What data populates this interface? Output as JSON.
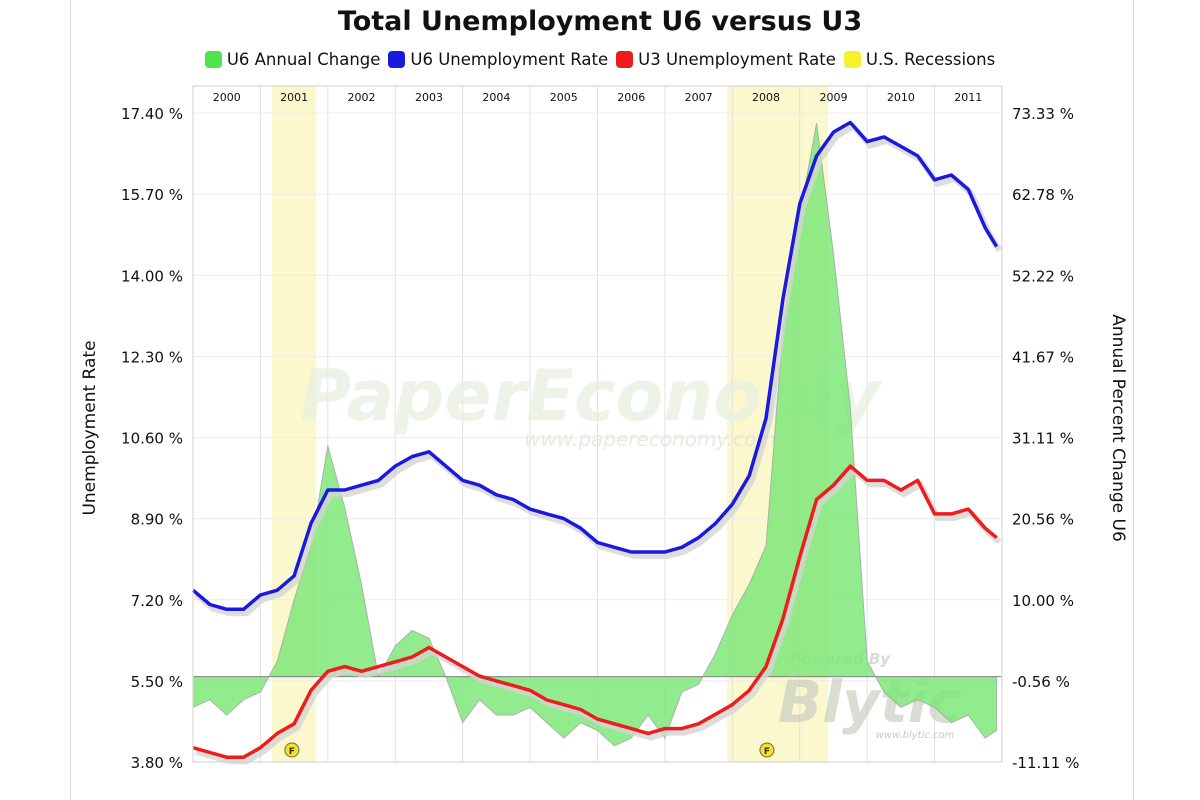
{
  "chart_data": {
    "type": "line",
    "title": "Total Unemployment U6 versus U3",
    "ylabel": "Unemployment Rate",
    "y2label": "Annual Percent Change U6",
    "ylim": [
      3.8,
      17.4
    ],
    "y2lim": [
      -11.11,
      73.33
    ],
    "yticks": [
      "3.80 %",
      "5.50 %",
      "7.20 %",
      "8.90 %",
      "10.60 %",
      "12.30 %",
      "14.00 %",
      "15.70 %",
      "17.40 %"
    ],
    "y2ticks": [
      "-11.11 %",
      "-0.56 %",
      "10.00 %",
      "20.56 %",
      "31.11 %",
      "41.67 %",
      "52.22 %",
      "62.78 %",
      "73.33 %"
    ],
    "years": [
      "2000",
      "2001",
      "2002",
      "2003",
      "2004",
      "2005",
      "2006",
      "2007",
      "2008",
      "2009",
      "2010",
      "2011"
    ],
    "grid": true,
    "legend_position": "top",
    "recessions": [
      {
        "start": 2001.17,
        "end": 2001.83
      },
      {
        "start": 2007.92,
        "end": 2009.42
      }
    ],
    "series": [
      {
        "name": "U6 Annual Change",
        "axis": "right",
        "type": "area",
        "color": "#7fe87a",
        "points": [
          [
            2000.0,
            -4
          ],
          [
            2000.25,
            -3
          ],
          [
            2000.5,
            -5
          ],
          [
            2000.75,
            -3
          ],
          [
            2001.0,
            -2
          ],
          [
            2001.25,
            2
          ],
          [
            2001.5,
            10
          ],
          [
            2001.75,
            17
          ],
          [
            2002.0,
            30
          ],
          [
            2002.25,
            22
          ],
          [
            2002.5,
            12
          ],
          [
            2002.75,
            0
          ],
          [
            2003.0,
            4
          ],
          [
            2003.25,
            6
          ],
          [
            2003.5,
            5
          ],
          [
            2003.75,
            0
          ],
          [
            2004.0,
            -6
          ],
          [
            2004.25,
            -3
          ],
          [
            2004.5,
            -5
          ],
          [
            2004.75,
            -5
          ],
          [
            2005.0,
            -4
          ],
          [
            2005.25,
            -6
          ],
          [
            2005.5,
            -8
          ],
          [
            2005.75,
            -6
          ],
          [
            2006.0,
            -7
          ],
          [
            2006.25,
            -9
          ],
          [
            2006.5,
            -8
          ],
          [
            2006.75,
            -5
          ],
          [
            2007.0,
            -8
          ],
          [
            2007.25,
            -2
          ],
          [
            2007.5,
            -1
          ],
          [
            2007.75,
            3
          ],
          [
            2008.0,
            8
          ],
          [
            2008.25,
            12
          ],
          [
            2008.5,
            17
          ],
          [
            2008.75,
            45
          ],
          [
            2009.0,
            60
          ],
          [
            2009.25,
            72
          ],
          [
            2009.5,
            55
          ],
          [
            2009.75,
            35
          ],
          [
            2010.0,
            2
          ],
          [
            2010.25,
            -2
          ],
          [
            2010.5,
            -4
          ],
          [
            2010.75,
            -3
          ],
          [
            2011.0,
            -4
          ],
          [
            2011.25,
            -6
          ],
          [
            2011.5,
            -5
          ],
          [
            2011.75,
            -8
          ],
          [
            2011.92,
            -7
          ]
        ]
      },
      {
        "name": "U6 Unemployment Rate",
        "axis": "left",
        "type": "line",
        "color": "#1a1adf",
        "points": [
          [
            2000.0,
            7.4
          ],
          [
            2000.25,
            7.1
          ],
          [
            2000.5,
            7.0
          ],
          [
            2000.75,
            7.0
          ],
          [
            2001.0,
            7.3
          ],
          [
            2001.25,
            7.4
          ],
          [
            2001.5,
            7.7
          ],
          [
            2001.75,
            8.8
          ],
          [
            2002.0,
            9.5
          ],
          [
            2002.25,
            9.5
          ],
          [
            2002.5,
            9.6
          ],
          [
            2002.75,
            9.7
          ],
          [
            2003.0,
            10.0
          ],
          [
            2003.25,
            10.2
          ],
          [
            2003.5,
            10.3
          ],
          [
            2003.75,
            10.0
          ],
          [
            2004.0,
            9.7
          ],
          [
            2004.25,
            9.6
          ],
          [
            2004.5,
            9.4
          ],
          [
            2004.75,
            9.3
          ],
          [
            2005.0,
            9.1
          ],
          [
            2005.25,
            9.0
          ],
          [
            2005.5,
            8.9
          ],
          [
            2005.75,
            8.7
          ],
          [
            2006.0,
            8.4
          ],
          [
            2006.25,
            8.3
          ],
          [
            2006.5,
            8.2
          ],
          [
            2006.75,
            8.2
          ],
          [
            2007.0,
            8.2
          ],
          [
            2007.25,
            8.3
          ],
          [
            2007.5,
            8.5
          ],
          [
            2007.75,
            8.8
          ],
          [
            2008.0,
            9.2
          ],
          [
            2008.25,
            9.8
          ],
          [
            2008.5,
            11.0
          ],
          [
            2008.75,
            13.5
          ],
          [
            2009.0,
            15.5
          ],
          [
            2009.25,
            16.5
          ],
          [
            2009.5,
            17.0
          ],
          [
            2009.75,
            17.2
          ],
          [
            2010.0,
            16.8
          ],
          [
            2010.25,
            16.9
          ],
          [
            2010.5,
            16.7
          ],
          [
            2010.75,
            16.5
          ],
          [
            2011.0,
            16.0
          ],
          [
            2011.25,
            16.1
          ],
          [
            2011.5,
            15.8
          ],
          [
            2011.75,
            15.0
          ],
          [
            2011.92,
            14.6
          ]
        ]
      },
      {
        "name": "U3 Unemployment Rate",
        "axis": "left",
        "type": "line",
        "color": "#ee1c1c",
        "points": [
          [
            2000.0,
            4.1
          ],
          [
            2000.25,
            4.0
          ],
          [
            2000.5,
            3.9
          ],
          [
            2000.75,
            3.9
          ],
          [
            2001.0,
            4.1
          ],
          [
            2001.25,
            4.4
          ],
          [
            2001.5,
            4.6
          ],
          [
            2001.75,
            5.3
          ],
          [
            2002.0,
            5.7
          ],
          [
            2002.25,
            5.8
          ],
          [
            2002.5,
            5.7
          ],
          [
            2002.75,
            5.8
          ],
          [
            2003.0,
            5.9
          ],
          [
            2003.25,
            6.0
          ],
          [
            2003.5,
            6.2
          ],
          [
            2003.75,
            6.0
          ],
          [
            2004.0,
            5.8
          ],
          [
            2004.25,
            5.6
          ],
          [
            2004.5,
            5.5
          ],
          [
            2004.75,
            5.4
          ],
          [
            2005.0,
            5.3
          ],
          [
            2005.25,
            5.1
          ],
          [
            2005.5,
            5.0
          ],
          [
            2005.75,
            4.9
          ],
          [
            2006.0,
            4.7
          ],
          [
            2006.25,
            4.6
          ],
          [
            2006.5,
            4.5
          ],
          [
            2006.75,
            4.4
          ],
          [
            2007.0,
            4.5
          ],
          [
            2007.25,
            4.5
          ],
          [
            2007.5,
            4.6
          ],
          [
            2007.75,
            4.8
          ],
          [
            2008.0,
            5.0
          ],
          [
            2008.25,
            5.3
          ],
          [
            2008.5,
            5.8
          ],
          [
            2008.75,
            6.8
          ],
          [
            2009.0,
            8.1
          ],
          [
            2009.25,
            9.3
          ],
          [
            2009.5,
            9.6
          ],
          [
            2009.75,
            10.0
          ],
          [
            2010.0,
            9.7
          ],
          [
            2010.25,
            9.7
          ],
          [
            2010.5,
            9.5
          ],
          [
            2010.75,
            9.7
          ],
          [
            2011.0,
            9.0
          ],
          [
            2011.25,
            9.0
          ],
          [
            2011.5,
            9.1
          ],
          [
            2011.75,
            8.7
          ],
          [
            2011.92,
            8.5
          ]
        ]
      }
    ],
    "legend": [
      {
        "label": "U6 Annual Change",
        "color": "#4de44d"
      },
      {
        "label": "U6 Unemployment Rate",
        "color": "#1a1adf"
      },
      {
        "label": "U3 Unemployment Rate",
        "color": "#ee1c1c"
      },
      {
        "label": "U.S. Recessions",
        "color": "#f5f22a"
      }
    ],
    "watermark": {
      "main": "PaperEconomy",
      "url": "www.papereconomy.com",
      "powered": "Powered By",
      "brand": "Blytic",
      "brand_url": "www.blytic.com"
    },
    "recession_marker": "F"
  }
}
